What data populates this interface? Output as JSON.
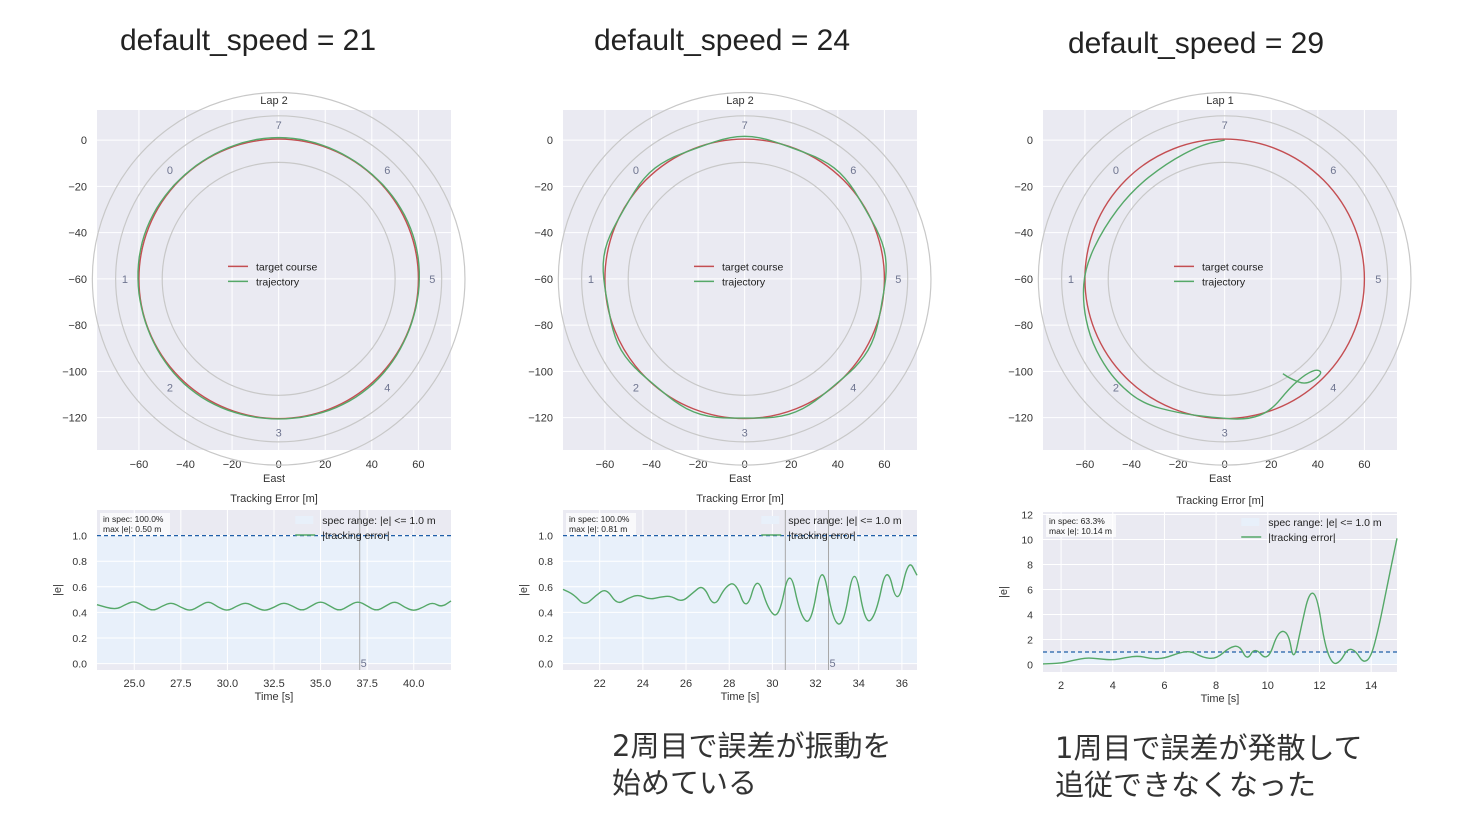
{
  "colors": {
    "target": "#c44e52",
    "trajectory": "#55a868",
    "spec_line": "#1f5fa8",
    "spec_fill": "#e8f0fa",
    "plot_bg": "#eaeaf2",
    "grid": "#ffffff",
    "ring": "#c8c8c8",
    "compass": "#6f7590",
    "marker": "#a8a8a8"
  },
  "panels": [
    {
      "heading": "default_speed = 21",
      "note": "",
      "lap": {
        "title": "Lap 2",
        "xlabel": "East",
        "legend": [
          "target course",
          "trajectory"
        ],
        "compass_labels": [
          "0",
          "1",
          "2",
          "3",
          "4",
          "5",
          "6",
          "7"
        ],
        "xticks": [
          "−60",
          "−40",
          "−20",
          "0",
          "20",
          "40",
          "60"
        ],
        "yticks": [
          "0",
          "−20",
          "−40",
          "−60",
          "−80",
          "−100",
          "−120"
        ]
      },
      "error": {
        "title": "Tracking Error [m]",
        "xlabel": "Time [s]",
        "ylabel": "|e|",
        "stats": [
          "in spec: 100.0%",
          "max |e|: 0.50 m"
        ],
        "legend": [
          "spec range: |e| <= 1.0 m",
          "|tracking error|"
        ],
        "xticks": [
          "25.0",
          "27.5",
          "30.0",
          "32.5",
          "35.0",
          "37.5",
          "40.0"
        ],
        "yticks": [
          "0.0",
          "0.2",
          "0.4",
          "0.6",
          "0.8",
          "1.0"
        ],
        "marker_labels": [
          "5"
        ]
      }
    },
    {
      "heading": "default_speed = 24",
      "note": "2周目で誤差が振動を\n始めている",
      "lap": {
        "title": "Lap 2",
        "xlabel": "East",
        "legend": [
          "target course",
          "trajectory"
        ],
        "compass_labels": [
          "0",
          "1",
          "2",
          "3",
          "4",
          "5",
          "6",
          "7"
        ],
        "xticks": [
          "−60",
          "−40",
          "−20",
          "0",
          "20",
          "40",
          "60"
        ],
        "yticks": [
          "0",
          "−20",
          "−40",
          "−60",
          "−80",
          "−100",
          "−120"
        ]
      },
      "error": {
        "title": "Tracking Error [m]",
        "xlabel": "Time [s]",
        "ylabel": "|e|",
        "stats": [
          "in spec: 100.0%",
          "max |e|: 0.81 m"
        ],
        "legend": [
          "spec range: |e| <= 1.0 m",
          "|tracking error|"
        ],
        "xticks": [
          "22",
          "24",
          "26",
          "28",
          "30",
          "32",
          "34",
          "36"
        ],
        "yticks": [
          "0.0",
          "0.2",
          "0.4",
          "0.6",
          "0.8",
          "1.0"
        ],
        "marker_labels": [
          "5"
        ]
      }
    },
    {
      "heading": "default_speed = 29",
      "note": "1周目で誤差が発散して\n追従できなくなった",
      "lap": {
        "title": "Lap 1",
        "xlabel": "East",
        "legend": [
          "target course",
          "trajectory"
        ],
        "compass_labels": [
          "0",
          "1",
          "2",
          "3",
          "4",
          "5",
          "6",
          "7"
        ],
        "xticks": [
          "−60",
          "−40",
          "−20",
          "0",
          "20",
          "40",
          "60"
        ],
        "yticks": [
          "0",
          "−20",
          "−40",
          "−60",
          "−80",
          "−100",
          "−120"
        ]
      },
      "error": {
        "title": "Tracking Error [m]",
        "xlabel": "Time [s]",
        "ylabel": "|e|",
        "stats": [
          "in spec: 63.3%",
          "max |e|: 10.14 m"
        ],
        "legend": [
          "spec range: |e| <= 1.0 m",
          "|tracking error|"
        ],
        "xticks": [
          "2",
          "4",
          "6",
          "8",
          "10",
          "12",
          "14"
        ],
        "yticks": [
          "0",
          "2",
          "4",
          "6",
          "8",
          "10",
          "12"
        ],
        "marker_labels": []
      }
    }
  ],
  "chart_data": [
    {
      "type": "line",
      "title": "Lap 2",
      "xlabel": "East",
      "ylabel": "",
      "xlim": [
        -78,
        74
      ],
      "ylim": [
        -134,
        13
      ],
      "grid": true,
      "legend_position": "center",
      "series": [
        {
          "name": "target course",
          "shape": "circle",
          "center": [
            0,
            -60
          ],
          "radius": 60
        },
        {
          "name": "trajectory",
          "shape": "near-circle",
          "center": [
            0,
            -60
          ],
          "radius": 60.4
        }
      ]
    },
    {
      "type": "line",
      "title": "Tracking Error [m]",
      "xlabel": "Time [s]",
      "ylabel": "|e|",
      "xlim": [
        23.0,
        42.0
      ],
      "ylim": [
        -0.05,
        1.2
      ],
      "spec_limit": 1.0,
      "vertical_markers": [
        37.1
      ],
      "series": [
        {
          "name": "|tracking error|",
          "x": [
            23.0,
            24.0,
            24.5,
            25.0,
            25.5,
            26.0,
            26.5,
            27.0,
            27.5,
            28.0,
            28.5,
            29.0,
            29.5,
            30.0,
            30.5,
            31.0,
            31.5,
            32.0,
            32.5,
            33.0,
            33.5,
            34.0,
            34.5,
            35.0,
            35.5,
            36.0,
            36.5,
            37.0,
            37.5,
            38.0,
            38.5,
            39.0,
            39.5,
            40.0,
            40.5,
            41.0,
            41.5,
            42.0
          ],
          "y": [
            0.46,
            0.42,
            0.46,
            0.49,
            0.45,
            0.41,
            0.45,
            0.48,
            0.44,
            0.41,
            0.45,
            0.49,
            0.44,
            0.41,
            0.45,
            0.48,
            0.44,
            0.41,
            0.44,
            0.48,
            0.45,
            0.41,
            0.45,
            0.49,
            0.45,
            0.41,
            0.45,
            0.49,
            0.45,
            0.41,
            0.45,
            0.49,
            0.44,
            0.41,
            0.44,
            0.48,
            0.44,
            0.49
          ]
        }
      ]
    },
    {
      "type": "line",
      "title": "Lap 2",
      "xlabel": "East",
      "ylabel": "",
      "xlim": [
        -78,
        74
      ],
      "ylim": [
        -134,
        13
      ],
      "grid": true,
      "legend_position": "center",
      "series": [
        {
          "name": "target course",
          "shape": "circle",
          "center": [
            0,
            -60
          ],
          "radius": 60
        },
        {
          "name": "trajectory",
          "shape": "wobbly-circle",
          "center": [
            0,
            -60
          ],
          "radius": 60.5
        }
      ]
    },
    {
      "type": "line",
      "title": "Tracking Error [m]",
      "xlabel": "Time [s]",
      "ylabel": "|e|",
      "xlim": [
        20.3,
        36.7
      ],
      "ylim": [
        -0.05,
        1.2
      ],
      "spec_limit": 1.0,
      "vertical_markers": [
        30.6,
        32.6
      ],
      "series": [
        {
          "name": "|tracking error|",
          "x": [
            20.3,
            20.8,
            21.3,
            21.8,
            22.3,
            22.8,
            23.3,
            23.8,
            24.3,
            24.8,
            25.3,
            25.8,
            26.3,
            26.8,
            27.3,
            27.8,
            28.3,
            28.8,
            29.3,
            29.8,
            30.3,
            30.8,
            31.3,
            31.8,
            32.3,
            32.8,
            33.3,
            33.8,
            34.3,
            34.8,
            35.3,
            35.8,
            36.3,
            36.7
          ],
          "y": [
            0.58,
            0.54,
            0.45,
            0.53,
            0.59,
            0.46,
            0.51,
            0.54,
            0.5,
            0.52,
            0.53,
            0.48,
            0.55,
            0.62,
            0.43,
            0.6,
            0.64,
            0.4,
            0.7,
            0.42,
            0.35,
            0.77,
            0.37,
            0.3,
            0.82,
            0.33,
            0.29,
            0.81,
            0.3,
            0.38,
            0.79,
            0.43,
            0.82,
            0.69
          ]
        }
      ]
    },
    {
      "type": "line",
      "title": "Lap 1",
      "xlabel": "East",
      "ylabel": "",
      "xlim": [
        -78,
        74
      ],
      "ylim": [
        -134,
        13
      ],
      "grid": true,
      "legend_position": "center",
      "series": [
        {
          "name": "target course",
          "shape": "circle",
          "center": [
            0,
            -60
          ],
          "radius": 60
        },
        {
          "name": "trajectory",
          "x": [
            0,
            -10,
            -25,
            -40,
            -52,
            -60,
            -61,
            -58,
            -52,
            -45,
            -35,
            -20,
            -5,
            10,
            20,
            28,
            35,
            40,
            42,
            35,
            28,
            25
          ],
          "y": [
            0,
            -2,
            -10,
            -22,
            -38,
            -55,
            -70,
            -85,
            -97,
            -106,
            -114,
            -118,
            -120,
            -121,
            -117,
            -107,
            -101,
            -99,
            -101,
            -106,
            -103,
            -101
          ]
        }
      ]
    },
    {
      "type": "line",
      "title": "Tracking Error [m]",
      "xlabel": "Time [s]",
      "ylabel": "|e|",
      "xlim": [
        1.3,
        15.0
      ],
      "ylim": [
        -0.6,
        12.2
      ],
      "spec_limit": 1.0,
      "series": [
        {
          "name": "|tracking error|",
          "x": [
            1.3,
            2.0,
            2.5,
            3.0,
            3.5,
            4.0,
            4.5,
            5.0,
            5.5,
            6.0,
            6.5,
            7.0,
            7.5,
            8.0,
            8.5,
            8.9,
            9.2,
            9.5,
            10.0,
            10.4,
            10.8,
            11.0,
            11.3,
            11.6,
            11.9,
            12.2,
            12.5,
            12.8,
            13.1,
            13.4,
            13.7,
            14.0,
            14.3,
            14.6,
            15.0
          ],
          "y": [
            0.05,
            0.1,
            0.35,
            0.55,
            0.45,
            0.35,
            0.55,
            0.7,
            0.45,
            0.5,
            0.9,
            1.1,
            0.55,
            0.45,
            1.35,
            1.55,
            0.3,
            1.4,
            0.2,
            2.7,
            2.6,
            0.1,
            3.1,
            5.8,
            5.6,
            1.6,
            0.0,
            0.2,
            1.3,
            1.1,
            0.1,
            0.6,
            3.0,
            6.1,
            10.1
          ]
        }
      ]
    }
  ]
}
